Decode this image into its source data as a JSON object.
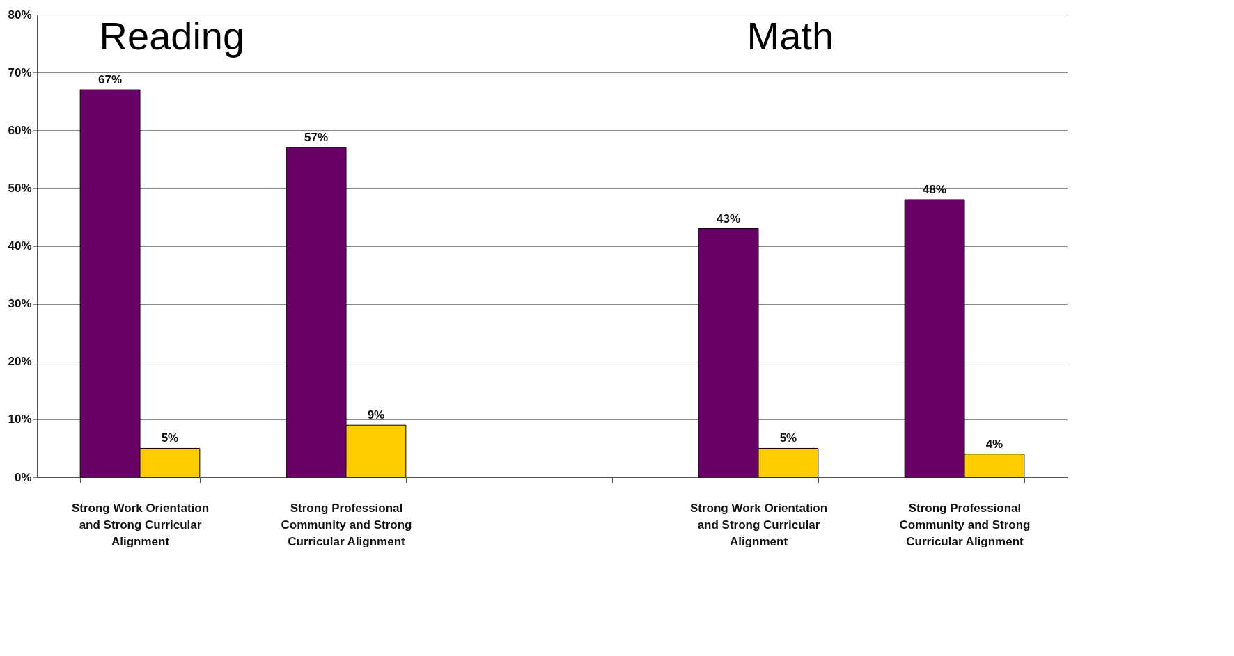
{
  "chart_data": {
    "type": "bar",
    "categories": [
      "Strong Work Orientation and Strong Curricular Alignment",
      "Strong Professional Community and Strong Curricular Alignment",
      null,
      "Strong Work Orientation and Strong Curricular Alignment",
      "Strong Professional Community and Strong Curricular Alignment"
    ],
    "series": [
      {
        "color": "#660066",
        "values": [
          67,
          57,
          null,
          43,
          48
        ],
        "value_labels": [
          "67%",
          "57%",
          null,
          "43%",
          "48%"
        ]
      },
      {
        "color": "#ffcc00",
        "values": [
          5,
          9,
          null,
          5,
          4
        ],
        "value_labels": [
          "5%",
          "9%",
          null,
          "5%",
          "4%"
        ]
      }
    ],
    "annotations": [
      "Reading",
      "Math"
    ],
    "ylim": [
      0,
      80
    ],
    "yticks": [
      {
        "value": 0,
        "label": "0%"
      },
      {
        "value": 10,
        "label": "10%"
      },
      {
        "value": 20,
        "label": "20%"
      },
      {
        "value": 30,
        "label": "30%"
      },
      {
        "value": 40,
        "label": "40%"
      },
      {
        "value": 50,
        "label": "50%"
      },
      {
        "value": 60,
        "label": "60%"
      },
      {
        "value": 70,
        "label": "70%"
      },
      {
        "value": 80,
        "label": "80%"
      }
    ],
    "grid": "y",
    "legend": false
  }
}
